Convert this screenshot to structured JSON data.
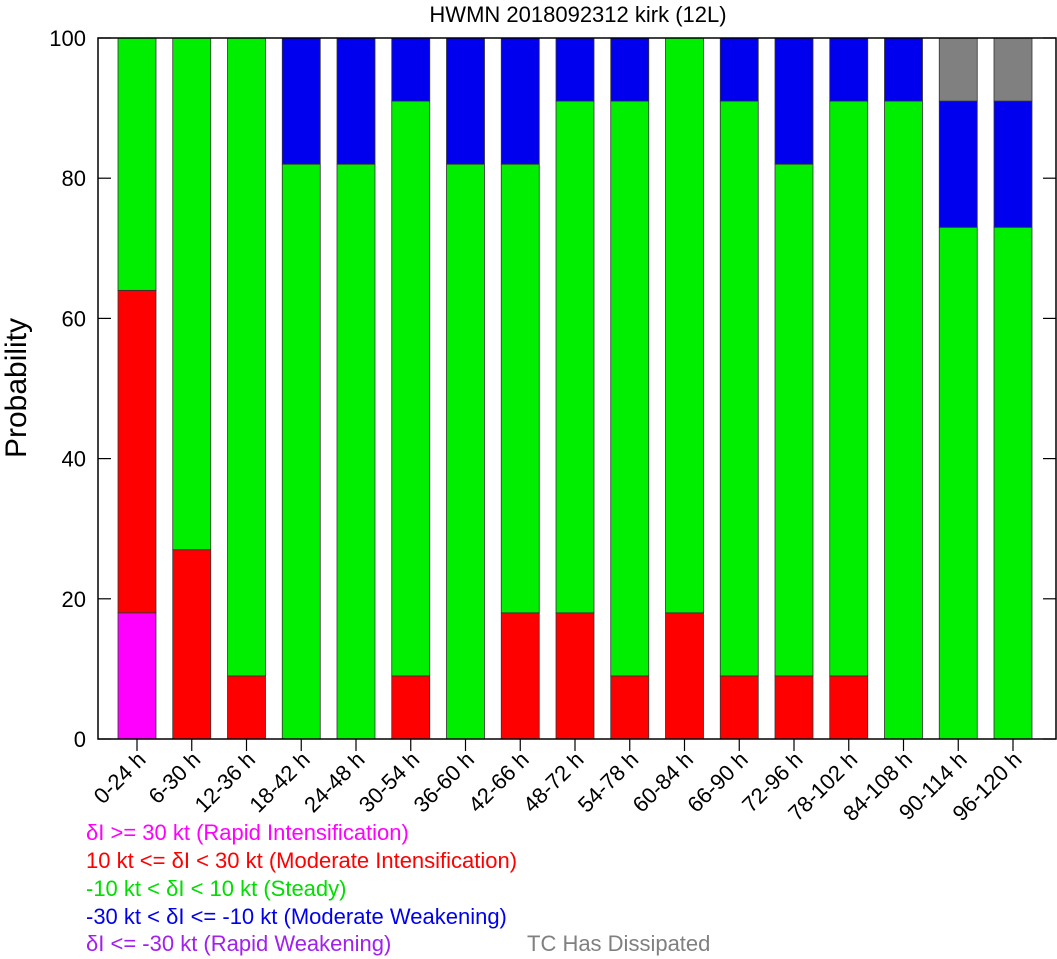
{
  "chart_data": {
    "type": "bar",
    "stacked": true,
    "title": "HWMN 2018092312 kirk (12L)",
    "ylabel": "Probability",
    "xlabel": "",
    "ylim": [
      0,
      100
    ],
    "yticks": [
      0,
      20,
      40,
      60,
      80,
      100
    ],
    "grid": false,
    "categories": [
      "0-24 h",
      "6-30 h",
      "12-36 h",
      "18-42 h",
      "24-48 h",
      "30-54 h",
      "36-60 h",
      "42-66 h",
      "48-72 h",
      "54-78 h",
      "60-84 h",
      "66-90 h",
      "72-96 h",
      "78-102 h",
      "84-108 h",
      "90-114 h",
      "96-120 h"
    ],
    "series": [
      {
        "key": "ri",
        "color": "#ff00ff",
        "values": [
          18,
          0,
          0,
          0,
          0,
          0,
          0,
          0,
          0,
          0,
          0,
          0,
          0,
          0,
          0,
          0,
          0
        ]
      },
      {
        "key": "mi",
        "color": "#ff0000",
        "values": [
          46,
          27,
          9,
          0,
          0,
          9,
          0,
          18,
          18,
          9,
          18,
          9,
          9,
          9,
          0,
          0,
          0
        ]
      },
      {
        "key": "steady",
        "color": "#00ee00",
        "values": [
          36,
          73,
          91,
          82,
          82,
          82,
          82,
          64,
          73,
          82,
          82,
          82,
          73,
          82,
          91,
          73,
          73
        ]
      },
      {
        "key": "mw",
        "color": "#0000ee",
        "values": [
          0,
          0,
          0,
          18,
          18,
          9,
          18,
          18,
          9,
          9,
          0,
          9,
          18,
          9,
          9,
          18,
          18
        ]
      },
      {
        "key": "rw",
        "color": "#a020f0",
        "values": [
          0,
          0,
          0,
          0,
          0,
          0,
          0,
          0,
          0,
          0,
          0,
          0,
          0,
          0,
          0,
          0,
          0
        ]
      },
      {
        "key": "dissipated",
        "color": "#808080",
        "values": [
          0,
          0,
          0,
          0,
          0,
          0,
          0,
          0,
          0,
          0,
          0,
          0,
          0,
          0,
          0,
          9,
          9
        ]
      }
    ]
  },
  "legend": {
    "ri": {
      "text": "δI >= 30 kt (Rapid Intensification)",
      "color": "#ff00ff"
    },
    "mi": {
      "text": "10 kt <= δI < 30 kt (Moderate Intensification)",
      "color": "#ff0000"
    },
    "steady": {
      "text": "-10 kt < δI < 10 kt (Steady)",
      "color": "#00dd00"
    },
    "mw": {
      "text": "-30 kt < δI <= -10 kt (Moderate Weakening)",
      "color": "#0000ee"
    },
    "rw": {
      "text": "δI <= -30 kt (Rapid Weakening)",
      "color": "#a020f0"
    },
    "dissipated": {
      "text": "TC Has Dissipated",
      "color": "#808080"
    }
  }
}
